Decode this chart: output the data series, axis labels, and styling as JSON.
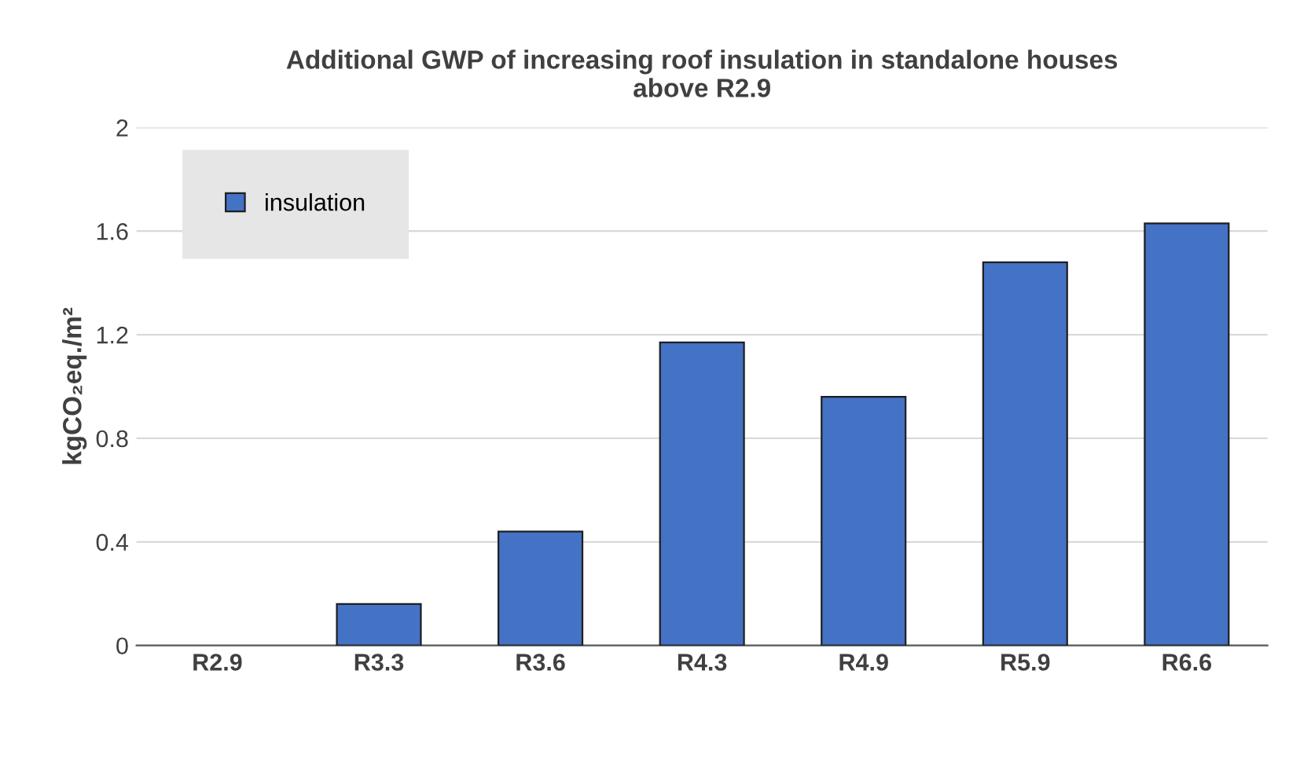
{
  "chart_data": {
    "type": "bar",
    "title": "Additional GWP of increasing roof insulation in standalone houses\nabove R2.9",
    "ylabel": "kgCO₂eq./m²",
    "categories": [
      "R2.9",
      "R3.3",
      "R3.6",
      "R4.3",
      "R4.9",
      "R5.9",
      "R6.6"
    ],
    "series": [
      {
        "name": "insulation",
        "color": "#4472c4",
        "values": [
          0,
          0.16,
          0.44,
          1.17,
          0.96,
          1.48,
          1.63
        ]
      }
    ],
    "ylim": [
      0,
      2
    ],
    "yticks": [
      0,
      0.4,
      0.8,
      1.2,
      1.6,
      2
    ],
    "grid": "y",
    "legend": "top left"
  }
}
